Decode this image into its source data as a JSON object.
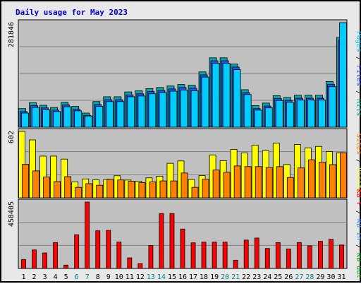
{
  "chart_data": {
    "type": "bar",
    "title": "Daily usage for May 2023",
    "categories": [
      "1",
      "2",
      "3",
      "4",
      "5",
      "6",
      "7",
      "8",
      "9",
      "10",
      "11",
      "12",
      "13",
      "14",
      "15",
      "16",
      "17",
      "18",
      "19",
      "20",
      "21",
      "22",
      "23",
      "24",
      "25",
      "26",
      "27",
      "28",
      "29",
      "30",
      "31"
    ],
    "weekend_days": [
      "6",
      "7",
      "13",
      "14",
      "20",
      "21",
      "27",
      "28"
    ],
    "panels": [
      {
        "id": "top",
        "max_label": "281846",
        "ylim": [
          0,
          281846
        ],
        "series": [
          {
            "name": "Hits",
            "color": "#00aaa0",
            "values": [
              50000,
              66000,
              59000,
              53000,
              67000,
              56000,
              38000,
              69000,
              82000,
              82000,
              95000,
              98000,
              104000,
              107000,
              111000,
              115000,
              113000,
              149000,
              187000,
              187000,
              170000,
              101000,
              58000,
              65000,
              85000,
              80000,
              86000,
              86000,
              86000,
              123000,
              242000
            ]
          },
          {
            "name": "Files",
            "color": "#2a4dff",
            "values": [
              42000,
              58000,
              52000,
              46000,
              60000,
              48000,
              32000,
              61000,
              74000,
              74000,
              87000,
              90000,
              96000,
              99000,
              103000,
              107000,
              105000,
              141000,
              179000,
              179000,
              162000,
              93000,
              50000,
              57000,
              77000,
              72000,
              78000,
              78000,
              78000,
              115000,
              234000
            ]
          },
          {
            "name": "Pages",
            "color": "#00ccff",
            "values": [
              38000,
              53000,
              47000,
              42000,
              55000,
              44000,
              30000,
              56000,
              69000,
              69000,
              82000,
              84000,
              90000,
              93000,
              97000,
              100000,
              98000,
              135000,
              172000,
              172000,
              155000,
              88000,
              46000,
              52000,
              72000,
              67000,
              73000,
              73000,
              73000,
              109000,
              281846
            ]
          }
        ]
      },
      {
        "id": "mid",
        "max_label": "602",
        "ylim": [
          0,
          602
        ],
        "series": [
          {
            "name": "Visits",
            "color": "#ffff00",
            "values": [
              602,
              525,
              378,
              378,
              351,
              145,
              171,
              164,
              167,
              200,
              161,
              150,
              181,
              196,
              313,
              334,
              166,
              201,
              389,
              337,
              439,
              407,
              478,
              428,
              495,
              302,
              483,
              453,
              466,
              419,
              409
            ]
          },
          {
            "name": "Sites",
            "color": "#ff8000",
            "values": [
              304,
              244,
              189,
              147,
              192,
              95,
              128,
              114,
              166,
              162,
              150,
              138,
              145,
              153,
              153,
              225,
              95,
              169,
              252,
              232,
              289,
              283,
              283,
              275,
              283,
              184,
              271,
              345,
              323,
              301,
              409
            ]
          }
        ]
      },
      {
        "id": "bot",
        "max_label": "458405",
        "ylim": [
          0,
          458405
        ],
        "series": [
          {
            "name": "KBytes",
            "color": "#ff0000",
            "values": [
              62000,
              128000,
              107000,
              179000,
              23000,
              233000,
              458405,
              260000,
              263000,
              183000,
              73000,
              34000,
              158000,
              379000,
              379000,
              272000,
              177000,
              182000,
              182000,
              182000,
              57000,
              196000,
              210000,
              138000,
              179000,
              135000,
              179000,
              156000,
              187000,
              201000,
              162000
            ]
          }
        ]
      }
    ],
    "axis_labels": {
      "top": [
        "Pages",
        "/",
        "Files",
        "/",
        "Hits"
      ],
      "mid": [
        "Sites",
        "/",
        "Visits"
      ],
      "bot": [
        "KB F",
        "/",
        "KB In",
        "/",
        "KB Out"
      ]
    },
    "axis_label_colors": {
      "top": [
        "#00ccff",
        "#000000",
        "#2a4dff",
        "#000000",
        "#00aaa0"
      ],
      "mid": [
        "#ff8000",
        "#000000",
        "#ffff00"
      ],
      "bot": [
        "#ff0000",
        "#000000",
        "#3399ff",
        "#000000",
        "#00a000"
      ]
    },
    "colors": {
      "plot_bg": "#c0c0c0",
      "title": "#0000cc",
      "day_normal": "#000000",
      "day_weekend": "#008080",
      "grid": "#808080"
    }
  }
}
